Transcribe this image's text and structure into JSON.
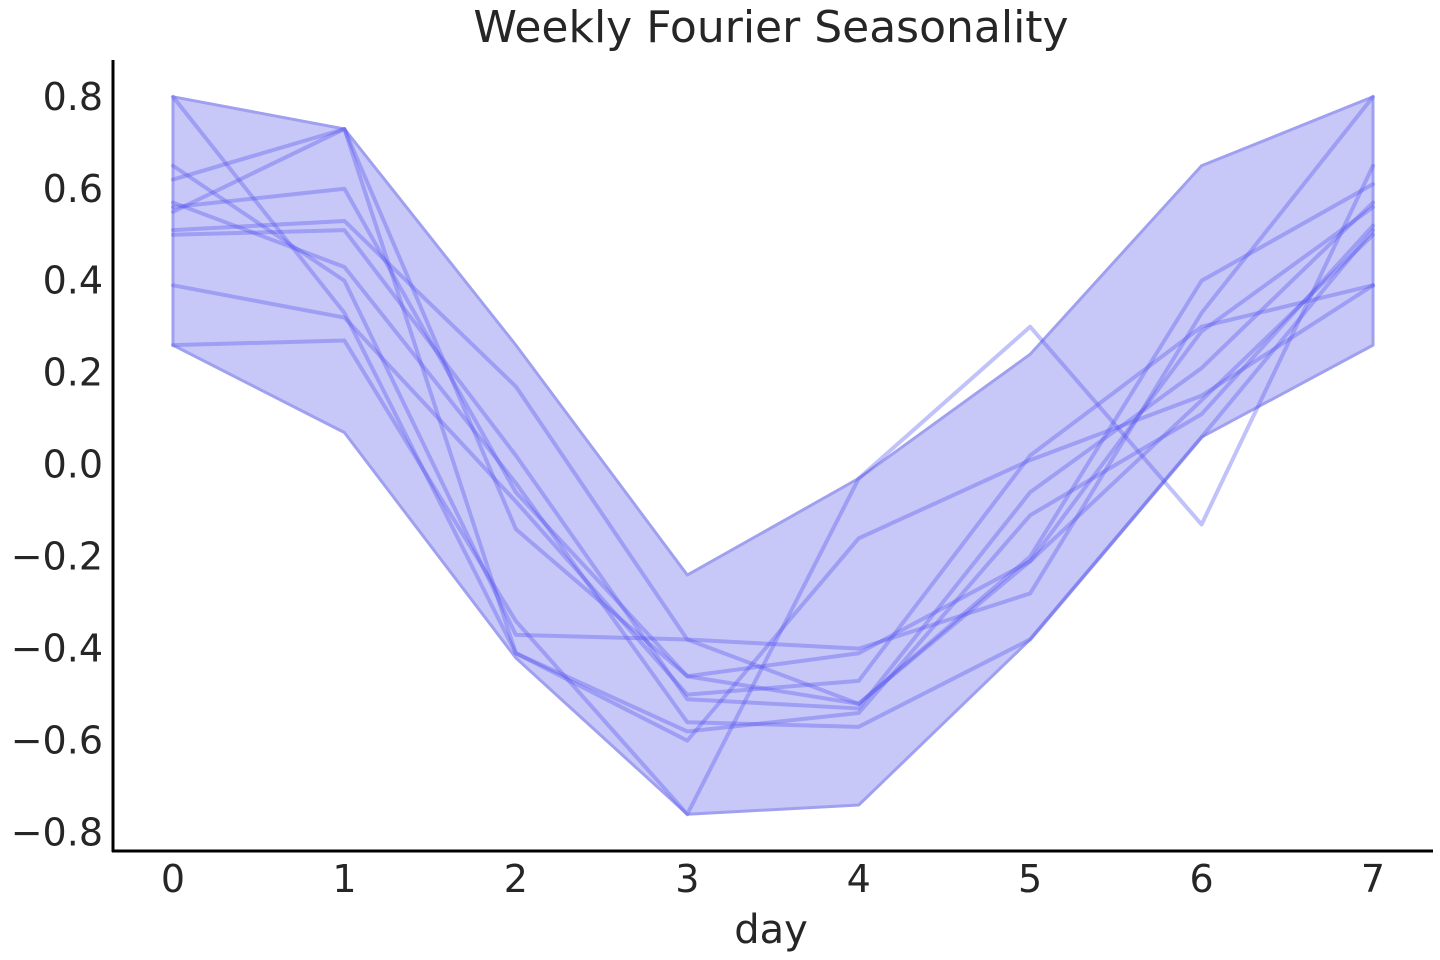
{
  "chart_data": {
    "type": "line",
    "title": "Weekly Fourier Seasonality",
    "xlabel": "day",
    "ylabel": "",
    "x": [
      0,
      1,
      2,
      3,
      4,
      5,
      6,
      7
    ],
    "xlim": [
      -0.35,
      7.35
    ],
    "ylim": [
      -0.84,
      0.88
    ],
    "xticks": [
      0,
      1,
      2,
      3,
      4,
      5,
      6,
      7
    ],
    "xtick_labels": [
      "0",
      "1",
      "2",
      "3",
      "4",
      "5",
      "6",
      "7"
    ],
    "yticks": [
      -0.8,
      -0.6,
      -0.4,
      -0.2,
      0.0,
      0.2,
      0.4,
      0.6,
      0.8
    ],
    "ytick_labels": [
      "−0.8",
      "−0.6",
      "−0.4",
      "−0.2",
      "0.0",
      "0.2",
      "0.4",
      "0.6",
      "0.8"
    ],
    "grid": false,
    "legend": "none",
    "line_color": "#4f4ff0",
    "band_color": "#c8c8f8",
    "band_edge_color": "#a0a0f0",
    "band": {
      "upper": [
        0.8,
        0.73,
        0.26,
        -0.24,
        -0.03,
        0.24,
        0.65,
        0.8
      ],
      "lower": [
        0.26,
        0.07,
        -0.42,
        -0.76,
        -0.74,
        -0.38,
        0.06,
        0.26
      ]
    },
    "series": [
      {
        "values": [
          0.8,
          0.33,
          -0.41,
          -0.6,
          -0.16,
          0.01,
          0.15,
          0.39
        ]
      },
      {
        "values": [
          0.62,
          0.73,
          -0.14,
          -0.46,
          -0.52,
          -0.21,
          0.29,
          0.56
        ]
      },
      {
        "values": [
          0.51,
          0.53,
          0.17,
          -0.38,
          -0.4,
          -0.28,
          0.33,
          0.8
        ]
      },
      {
        "values": [
          0.65,
          0.4,
          -0.37,
          -0.38,
          -0.52,
          -0.2,
          0.4,
          0.61
        ]
      },
      {
        "values": [
          0.26,
          0.27,
          -0.34,
          -0.76,
          -0.03,
          0.3,
          -0.13,
          0.65
        ]
      },
      {
        "values": [
          0.57,
          0.43,
          -0.04,
          -0.56,
          -0.57,
          -0.38,
          0.06,
          0.51
        ]
      },
      {
        "values": [
          0.5,
          0.51,
          0.02,
          -0.51,
          -0.53,
          -0.06,
          0.21,
          0.57
        ]
      },
      {
        "values": [
          0.55,
          0.73,
          -0.41,
          -0.58,
          -0.54,
          -0.11,
          0.11,
          0.52
        ]
      },
      {
        "values": [
          0.39,
          0.32,
          -0.08,
          -0.5,
          -0.47,
          0.02,
          0.3,
          0.39
        ]
      },
      {
        "values": [
          0.56,
          0.6,
          -0.06,
          -0.46,
          -0.41,
          -0.21,
          0.14,
          0.5
        ]
      }
    ]
  }
}
